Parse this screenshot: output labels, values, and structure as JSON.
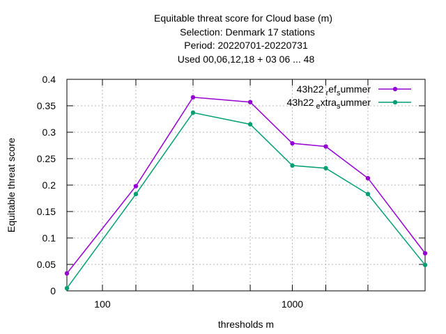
{
  "chart_data": {
    "type": "line",
    "title_lines": [
      "Equitable threat score  for Cloud base (m)",
      "Selection: Denmark     17 stations",
      "Period: 20220701-20220731",
      "Used  00,06,12,18  + 03 06 ... 48"
    ],
    "xlabel": "thresholds m",
    "ylabel": "Equitable threat score",
    "x_scale": "log",
    "xlim": [
      65,
      5000
    ],
    "ylim": [
      0,
      0.4
    ],
    "x_tick_labels": [
      {
        "value": 100,
        "label": "100"
      },
      {
        "value": 1000,
        "label": "1000"
      }
    ],
    "x_ticks": [
      150,
      300,
      600,
      1500,
      2500
    ],
    "y_ticks": [
      {
        "value": 0,
        "label": "0"
      },
      {
        "value": 0.05,
        "label": "0.05"
      },
      {
        "value": 0.1,
        "label": "0.1"
      },
      {
        "value": 0.15,
        "label": "0.15"
      },
      {
        "value": 0.2,
        "label": "0.2"
      },
      {
        "value": 0.25,
        "label": "0.25"
      },
      {
        "value": 0.3,
        "label": "0.3"
      },
      {
        "value": 0.35,
        "label": "0.35"
      },
      {
        "value": 0.4,
        "label": "0.4"
      }
    ],
    "grid": true,
    "legend_position": "top-right",
    "x": [
      65,
      150,
      300,
      600,
      1000,
      1500,
      2500,
      5000
    ],
    "series": [
      {
        "legend": {
          "base": "43h22",
          "sub1": "r",
          "mid": "ef",
          "sub2": "s",
          "tail": "ummer"
        },
        "color": "#9400d3",
        "values": [
          0.033,
          0.198,
          0.366,
          0.357,
          0.279,
          0.273,
          0.213,
          0.071
        ]
      },
      {
        "legend": {
          "base": "43h22",
          "sub1": "e",
          "mid": "xtra",
          "sub2": "s",
          "tail": "ummer"
        },
        "color": "#009e73",
        "values": [
          0.005,
          0.183,
          0.337,
          0.315,
          0.237,
          0.232,
          0.183,
          0.049
        ]
      }
    ]
  }
}
